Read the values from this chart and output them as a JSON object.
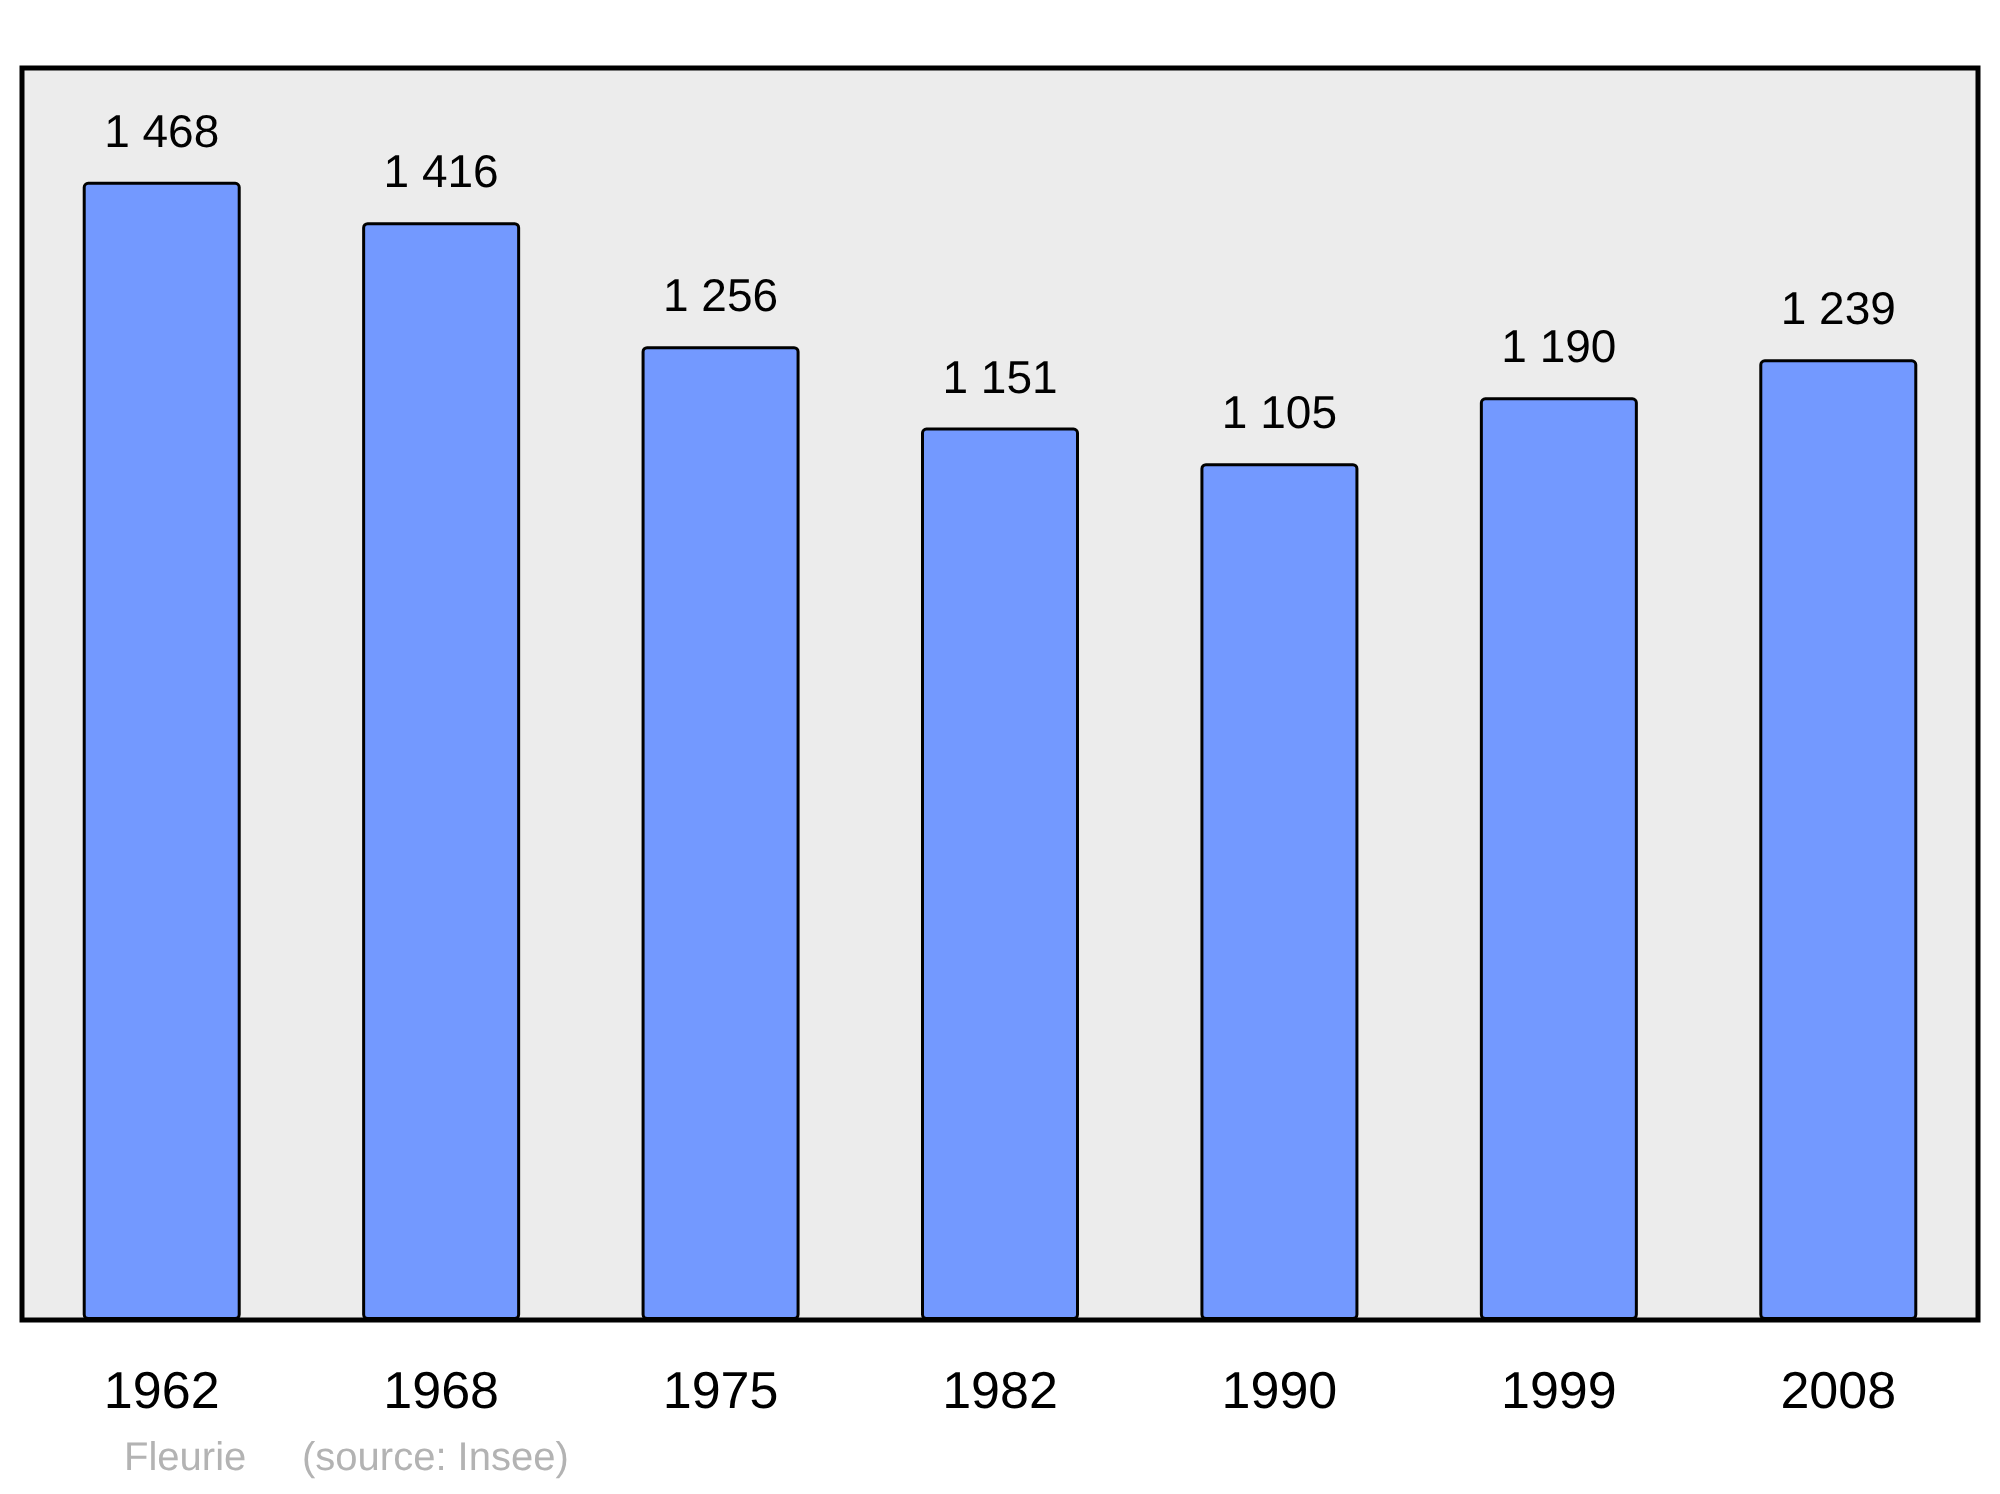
{
  "chart_data": {
    "type": "bar",
    "categories": [
      "1962",
      "1968",
      "1975",
      "1982",
      "1990",
      "1999",
      "2008"
    ],
    "values": [
      1468,
      1416,
      1256,
      1151,
      1105,
      1190,
      1239
    ],
    "value_labels": [
      "1 468",
      "1 416",
      "1 256",
      "1 151",
      "1 105",
      "1 190",
      "1 239"
    ],
    "color": "#7399ff",
    "annotations": [
      "Fleurie",
      "(source: Insee)"
    ]
  }
}
